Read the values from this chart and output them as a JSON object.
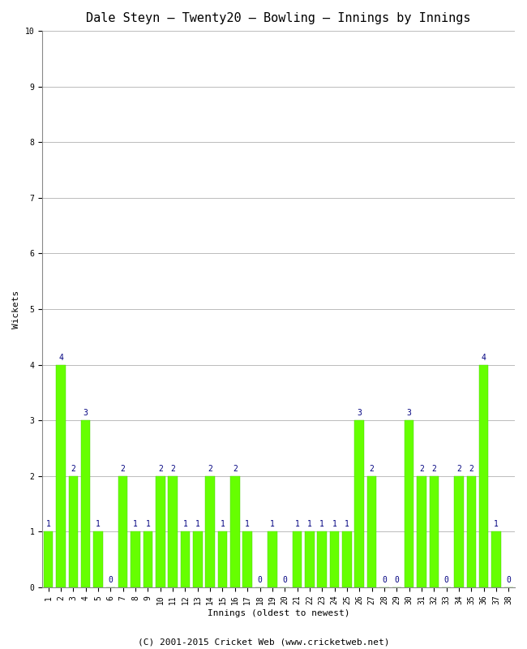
{
  "title": "Dale Steyn – Twenty20 – Bowling – Innings by Innings",
  "xlabel": "Innings (oldest to newest)",
  "ylabel": "Wickets",
  "ylim": [
    0,
    10
  ],
  "yticks": [
    0,
    1,
    2,
    3,
    4,
    5,
    6,
    7,
    8,
    9,
    10
  ],
  "wickets": [
    1,
    4,
    2,
    3,
    1,
    0,
    2,
    1,
    1,
    2,
    2,
    1,
    1,
    2,
    1,
    2,
    1,
    0,
    1,
    0,
    1,
    1,
    1,
    1,
    1,
    3,
    2,
    0,
    0,
    3,
    2,
    2,
    0,
    2,
    2,
    4,
    1,
    0
  ],
  "innings_labels": [
    "1",
    "2",
    "3",
    "4",
    "5",
    "6",
    "7",
    "8",
    "9",
    "10",
    "11",
    "12",
    "13",
    "14",
    "15",
    "16",
    "17",
    "18",
    "19",
    "20",
    "21",
    "22",
    "23",
    "24",
    "25",
    "26",
    "27",
    "28",
    "29",
    "30",
    "31",
    "32",
    "33",
    "34",
    "35",
    "36",
    "37",
    "38"
  ],
  "bar_color": "#66ff00",
  "bar_edge_color": "#44cc00",
  "label_color": "#000080",
  "background_color": "#ffffff",
  "grid_color": "#bbbbbb",
  "footer": "(C) 2001-2015 Cricket Web (www.cricketweb.net)",
  "title_fontsize": 11,
  "axis_label_fontsize": 8,
  "value_label_fontsize": 7,
  "tick_fontsize": 7,
  "footer_fontsize": 8,
  "bar_width": 0.75
}
